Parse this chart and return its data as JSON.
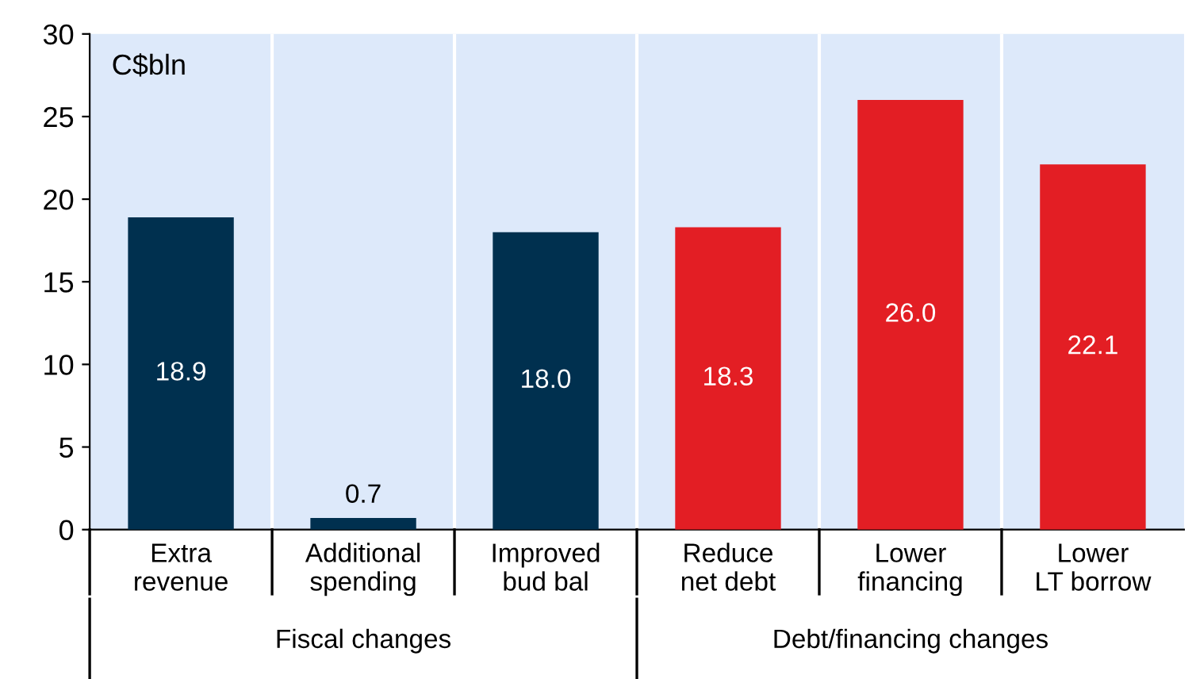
{
  "chart_data": {
    "type": "bar",
    "ylabel": "C$bln",
    "categories": [
      "Extra\nrevenue",
      "Additional\nspending",
      "Improved\nbud bal",
      "Reduce\nnet debt",
      "Lower\nfinancing",
      "Lower\nLT borrow"
    ],
    "values": [
      18.9,
      0.7,
      18.0,
      18.3,
      26.0,
      22.1
    ],
    "colors": [
      "#00304f",
      "#00304f",
      "#00304f",
      "#e31e24",
      "#e31e24",
      "#e31e24"
    ],
    "ylim": [
      0,
      30
    ],
    "yticks": [
      0,
      5,
      10,
      15,
      20,
      25,
      30
    ],
    "grid": "x",
    "value_labels": [
      "18.9",
      "0.7",
      "18.0",
      "18.3",
      "26.0",
      "22.1"
    ],
    "annotations": [
      "Fiscal changes",
      "Debt/financing changes"
    ]
  }
}
